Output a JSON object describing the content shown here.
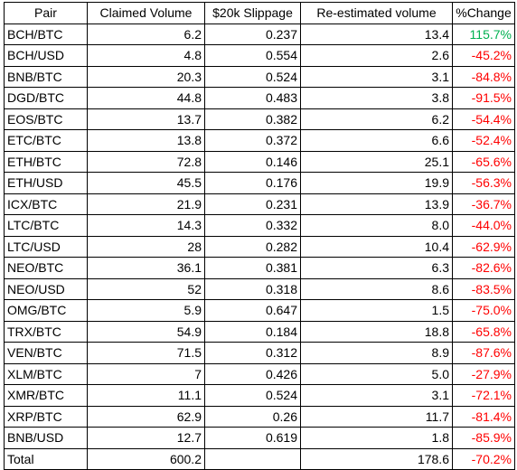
{
  "table": {
    "headers": [
      "Pair",
      "Claimed Volume",
      "$20k Slippage",
      "Re-estimated volume",
      "%Change"
    ],
    "rows": [
      {
        "pair": "BCH/BTC",
        "claimed": "6.2",
        "slippage": "0.237",
        "reestimated": "13.4",
        "change": "115.7%",
        "positive": true
      },
      {
        "pair": "BCH/USD",
        "claimed": "4.8",
        "slippage": "0.554",
        "reestimated": "2.6",
        "change": "-45.2%",
        "positive": false
      },
      {
        "pair": "BNB/BTC",
        "claimed": "20.3",
        "slippage": "0.524",
        "reestimated": "3.1",
        "change": "-84.8%",
        "positive": false
      },
      {
        "pair": "DGD/BTC",
        "claimed": "44.8",
        "slippage": "0.483",
        "reestimated": "3.8",
        "change": "-91.5%",
        "positive": false
      },
      {
        "pair": "EOS/BTC",
        "claimed": "13.7",
        "slippage": "0.382",
        "reestimated": "6.2",
        "change": "-54.4%",
        "positive": false
      },
      {
        "pair": "ETC/BTC",
        "claimed": "13.8",
        "slippage": "0.372",
        "reestimated": "6.6",
        "change": "-52.4%",
        "positive": false
      },
      {
        "pair": "ETH/BTC",
        "claimed": "72.8",
        "slippage": "0.146",
        "reestimated": "25.1",
        "change": "-65.6%",
        "positive": false
      },
      {
        "pair": "ETH/USD",
        "claimed": "45.5",
        "slippage": "0.176",
        "reestimated": "19.9",
        "change": "-56.3%",
        "positive": false
      },
      {
        "pair": "ICX/BTC",
        "claimed": "21.9",
        "slippage": "0.231",
        "reestimated": "13.9",
        "change": "-36.7%",
        "positive": false
      },
      {
        "pair": "LTC/BTC",
        "claimed": "14.3",
        "slippage": "0.332",
        "reestimated": "8.0",
        "change": "-44.0%",
        "positive": false
      },
      {
        "pair": "LTC/USD",
        "claimed": "28",
        "slippage": "0.282",
        "reestimated": "10.4",
        "change": "-62.9%",
        "positive": false
      },
      {
        "pair": "NEO/BTC",
        "claimed": "36.1",
        "slippage": "0.381",
        "reestimated": "6.3",
        "change": "-82.6%",
        "positive": false
      },
      {
        "pair": "NEO/USD",
        "claimed": "52",
        "slippage": "0.318",
        "reestimated": "8.6",
        "change": "-83.5%",
        "positive": false
      },
      {
        "pair": "OMG/BTC",
        "claimed": "5.9",
        "slippage": "0.647",
        "reestimated": "1.5",
        "change": "-75.0%",
        "positive": false
      },
      {
        "pair": "TRX/BTC",
        "claimed": "54.9",
        "slippage": "0.184",
        "reestimated": "18.8",
        "change": "-65.8%",
        "positive": false
      },
      {
        "pair": "VEN/BTC",
        "claimed": "71.5",
        "slippage": "0.312",
        "reestimated": "8.9",
        "change": "-87.6%",
        "positive": false
      },
      {
        "pair": "XLM/BTC",
        "claimed": "7",
        "slippage": "0.426",
        "reestimated": "5.0",
        "change": "-27.9%",
        "positive": false
      },
      {
        "pair": "XMR/BTC",
        "claimed": "11.1",
        "slippage": "0.524",
        "reestimated": "3.1",
        "change": "-72.1%",
        "positive": false
      },
      {
        "pair": "XRP/BTC",
        "claimed": "62.9",
        "slippage": "0.26",
        "reestimated": "11.7",
        "change": "-81.4%",
        "positive": false
      },
      {
        "pair": "BNB/USD",
        "claimed": "12.7",
        "slippage": "0.619",
        "reestimated": "1.8",
        "change": "-85.9%",
        "positive": false
      }
    ],
    "total": {
      "pair": "Total",
      "claimed": "600.2",
      "slippage": "",
      "reestimated": "178.6",
      "change": "-70.2%",
      "positive": false
    }
  },
  "colors": {
    "negative": "#ff0000",
    "positive": "#00b050",
    "border": "#000000"
  }
}
